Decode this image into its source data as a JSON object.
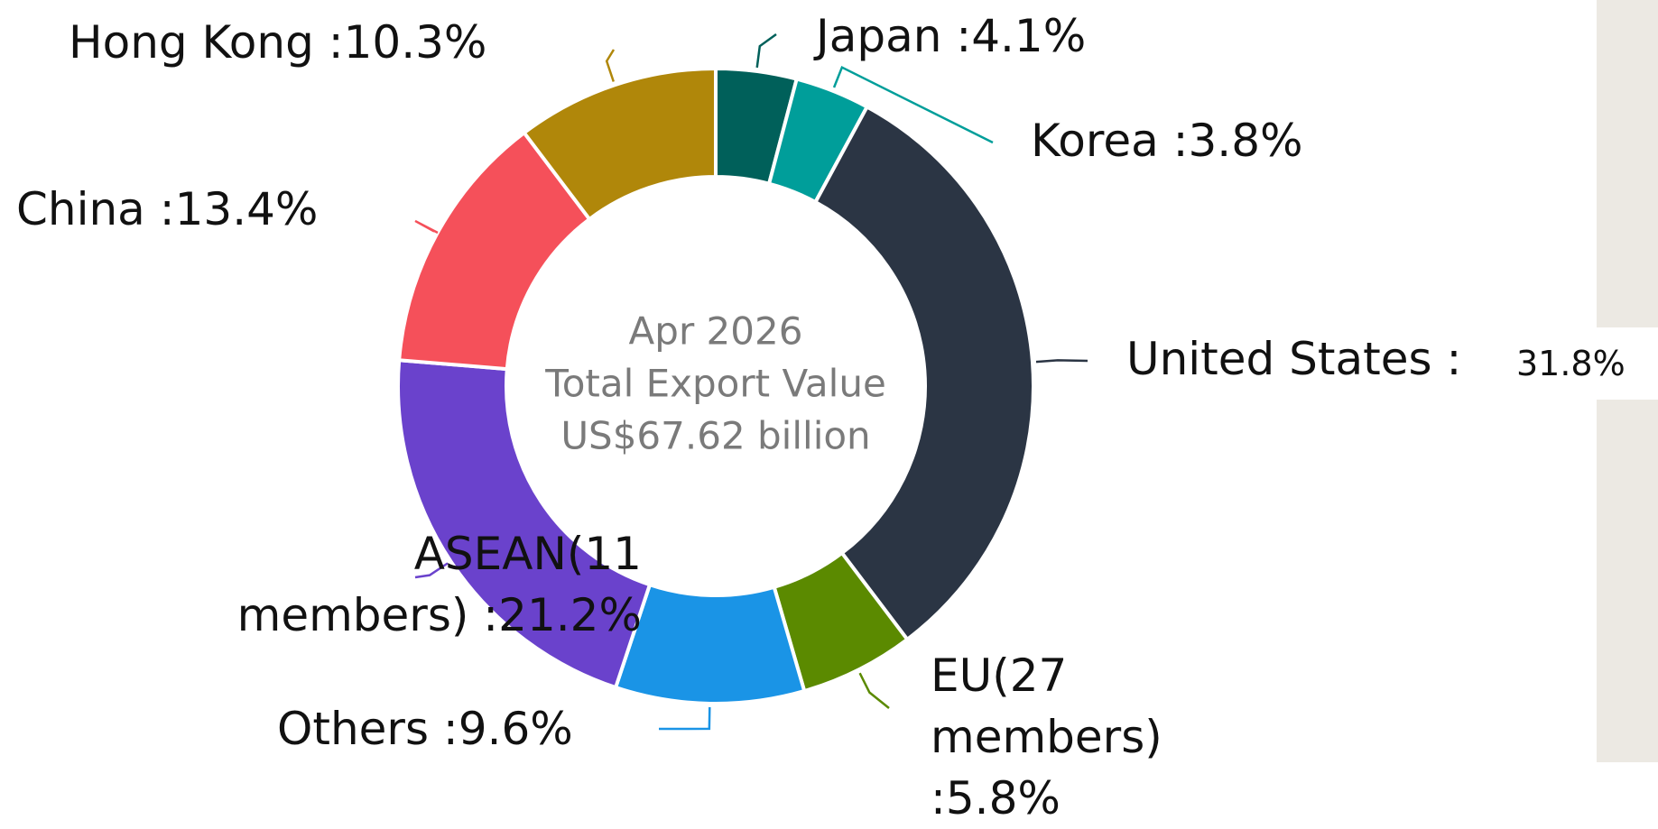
{
  "chart_data": {
    "type": "donut",
    "categories": [
      "Japan",
      "Korea",
      "United States",
      "EU(27 members)",
      "Others",
      "ASEAN(11 members)",
      "China",
      "Hong Kong"
    ],
    "values": [
      4.1,
      3.8,
      31.8,
      5.8,
      9.6,
      21.2,
      13.4,
      10.3
    ],
    "value_labels": [
      "4.1%",
      "3.8%",
      "31.8%",
      "5.8%",
      "9.6%",
      "21.2%",
      "13.4%",
      "10.3%"
    ],
    "label_separator": " :",
    "colors": [
      "#00605a",
      "#009e9a",
      "#2b3544",
      "#5b8a00",
      "#1a94e6",
      "#6a42cc",
      "#f5505a",
      "#b0870a"
    ],
    "center_text": [
      "Apr 2026",
      "Total Export Value",
      "US$67.62 billion"
    ]
  }
}
